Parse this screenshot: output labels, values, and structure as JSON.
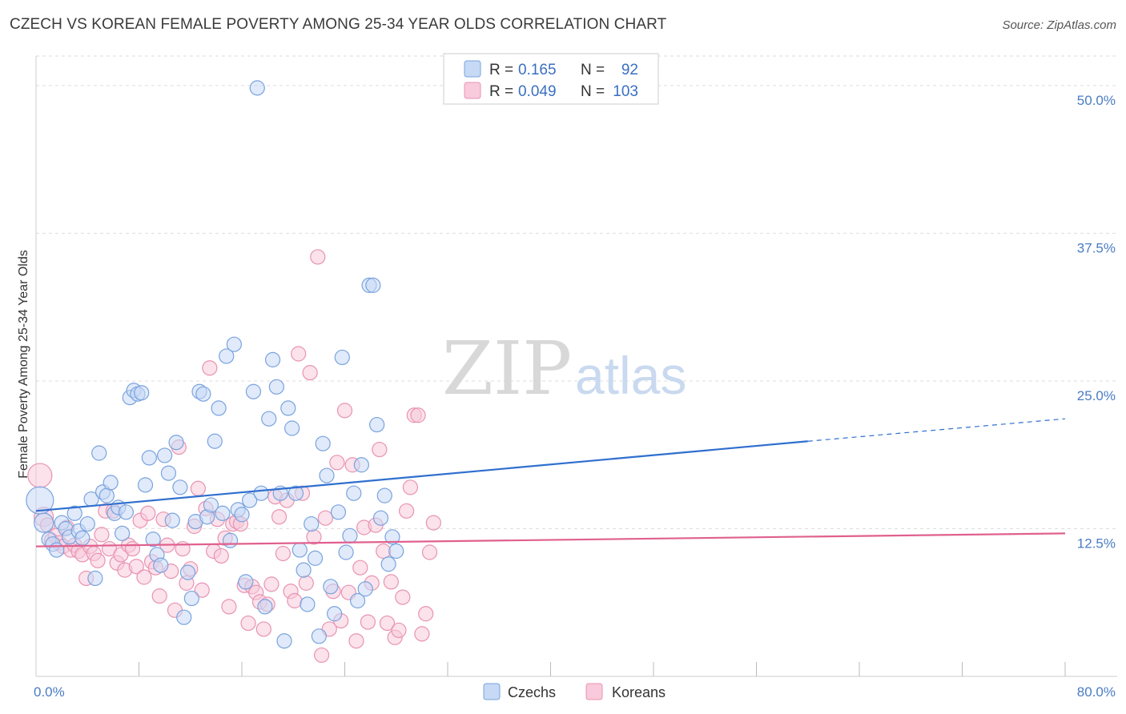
{
  "title": "CZECH VS KOREAN FEMALE POVERTY AMONG 25-34 YEAR OLDS CORRELATION CHART",
  "source": "Source: ZipAtlas.com",
  "watermark": {
    "zip": "ZIP",
    "atlas": "atlas"
  },
  "legend": {
    "r_label": "R =",
    "n_label": "N =",
    "czechs": {
      "r": "0.165",
      "n": "92"
    },
    "koreans": {
      "r": "0.049",
      "n": "103"
    }
  },
  "bottom_legend": {
    "czechs": "Czechs",
    "koreans": "Koreans"
  },
  "colors": {
    "czech_fill": "#c6d9f5",
    "czech_stroke": "#7aa3dd",
    "czech_line": "#2f6fcf",
    "korean_fill": "#f8cadb",
    "korean_stroke": "#e893b2",
    "korean_line": "#e0608e",
    "tick": "#4a7cc4",
    "grid": "#dddddd"
  },
  "chart_data": {
    "type": "scatter",
    "title": "CZECH VS KOREAN FEMALE POVERTY AMONG 25-34 YEAR OLDS CORRELATION CHART",
    "xlabel": "",
    "ylabel": "Female Poverty Among 25-34 Year Olds",
    "xlim": [
      0,
      80
    ],
    "ylim": [
      0,
      52.5
    ],
    "x_tick_labels": [
      "0.0%",
      "80.0%"
    ],
    "y_ticks": [
      12.5,
      25.0,
      37.5,
      50.0
    ],
    "y_tick_labels": [
      "12.5%",
      "25.0%",
      "37.5%",
      "50.0%"
    ],
    "grid": "horizontal dashed",
    "legend_placement": "top-center",
    "series": [
      {
        "name": "Czechs",
        "r": 0.165,
        "n": 92,
        "trend": {
          "x0": 0,
          "y0": 14.0,
          "x1": 60,
          "y1": 19.9,
          "dashed_to_x": 80,
          "dashed_to_y": 21.8
        },
        "points": [
          [
            0.3,
            14.9
          ],
          [
            0.6,
            13.0
          ],
          [
            1.0,
            11.6
          ],
          [
            1.3,
            11.2
          ],
          [
            1.6,
            10.7
          ],
          [
            2.0,
            13.0
          ],
          [
            2.3,
            12.5
          ],
          [
            2.6,
            11.8
          ],
          [
            3.0,
            13.8
          ],
          [
            3.3,
            12.3
          ],
          [
            3.6,
            11.7
          ],
          [
            4.0,
            12.9
          ],
          [
            4.3,
            15.0
          ],
          [
            4.6,
            8.3
          ],
          [
            4.9,
            18.9
          ],
          [
            5.2,
            15.6
          ],
          [
            5.5,
            15.3
          ],
          [
            5.8,
            16.4
          ],
          [
            6.1,
            13.8
          ],
          [
            6.4,
            14.3
          ],
          [
            6.7,
            12.1
          ],
          [
            7.0,
            13.9
          ],
          [
            7.3,
            23.6
          ],
          [
            7.6,
            24.2
          ],
          [
            7.9,
            23.9
          ],
          [
            8.2,
            24.0
          ],
          [
            8.5,
            16.2
          ],
          [
            8.8,
            18.5
          ],
          [
            9.1,
            11.6
          ],
          [
            9.4,
            10.3
          ],
          [
            9.7,
            9.4
          ],
          [
            10.0,
            18.7
          ],
          [
            10.3,
            17.2
          ],
          [
            10.6,
            13.2
          ],
          [
            10.9,
            19.8
          ],
          [
            11.2,
            16.0
          ],
          [
            11.5,
            5.0
          ],
          [
            11.8,
            8.8
          ],
          [
            12.1,
            6.6
          ],
          [
            12.4,
            13.1
          ],
          [
            12.7,
            24.1
          ],
          [
            13.0,
            23.9
          ],
          [
            13.3,
            13.5
          ],
          [
            13.6,
            14.5
          ],
          [
            13.9,
            19.9
          ],
          [
            14.2,
            22.7
          ],
          [
            14.5,
            13.8
          ],
          [
            14.8,
            27.1
          ],
          [
            15.1,
            11.5
          ],
          [
            15.4,
            28.1
          ],
          [
            15.7,
            14.1
          ],
          [
            16.0,
            13.7
          ],
          [
            16.3,
            8.0
          ],
          [
            16.6,
            14.9
          ],
          [
            16.9,
            24.1
          ],
          [
            17.2,
            49.8
          ],
          [
            17.5,
            15.5
          ],
          [
            17.8,
            5.9
          ],
          [
            18.1,
            21.8
          ],
          [
            18.4,
            26.8
          ],
          [
            18.7,
            24.5
          ],
          [
            19.0,
            15.5
          ],
          [
            19.3,
            3.0
          ],
          [
            19.6,
            22.7
          ],
          [
            19.9,
            21.0
          ],
          [
            20.2,
            15.5
          ],
          [
            20.5,
            10.7
          ],
          [
            20.8,
            9.0
          ],
          [
            21.1,
            6.1
          ],
          [
            21.4,
            12.9
          ],
          [
            21.7,
            10.0
          ],
          [
            22.0,
            3.4
          ],
          [
            22.3,
            19.7
          ],
          [
            22.6,
            17.0
          ],
          [
            22.9,
            7.6
          ],
          [
            23.2,
            5.3
          ],
          [
            23.5,
            13.9
          ],
          [
            23.8,
            27.0
          ],
          [
            24.1,
            10.5
          ],
          [
            24.4,
            11.9
          ],
          [
            24.7,
            15.5
          ],
          [
            25.0,
            6.4
          ],
          [
            25.3,
            17.9
          ],
          [
            25.6,
            7.4
          ],
          [
            25.9,
            33.1
          ],
          [
            26.2,
            33.1
          ],
          [
            26.5,
            21.3
          ],
          [
            26.8,
            13.4
          ],
          [
            27.1,
            15.3
          ],
          [
            27.4,
            9.5
          ],
          [
            27.7,
            11.8
          ],
          [
            28.0,
            10.6
          ]
        ]
      },
      {
        "name": "Koreans",
        "r": 0.049,
        "n": 103,
        "trend": {
          "x0": 0,
          "y0": 11.0,
          "x1": 80,
          "y1": 12.1
        },
        "points": [
          [
            0.3,
            17.0
          ],
          [
            0.6,
            13.5
          ],
          [
            0.9,
            12.8
          ],
          [
            1.2,
            11.5
          ],
          [
            1.5,
            11.9
          ],
          [
            1.8,
            11.3
          ],
          [
            2.1,
            11.0
          ],
          [
            2.4,
            12.6
          ],
          [
            2.7,
            10.7
          ],
          [
            3.0,
            11.1
          ],
          [
            3.3,
            10.6
          ],
          [
            3.6,
            10.3
          ],
          [
            3.9,
            8.3
          ],
          [
            4.2,
            11.0
          ],
          [
            4.5,
            10.4
          ],
          [
            4.8,
            9.8
          ],
          [
            5.1,
            12.0
          ],
          [
            5.4,
            14.0
          ],
          [
            5.7,
            10.8
          ],
          [
            6.0,
            14.0
          ],
          [
            6.3,
            9.6
          ],
          [
            6.6,
            10.3
          ],
          [
            6.9,
            9.0
          ],
          [
            7.2,
            11.1
          ],
          [
            7.5,
            10.8
          ],
          [
            7.8,
            9.3
          ],
          [
            8.1,
            13.2
          ],
          [
            8.4,
            8.4
          ],
          [
            8.7,
            13.8
          ],
          [
            9.0,
            9.7
          ],
          [
            9.3,
            9.2
          ],
          [
            9.6,
            6.8
          ],
          [
            9.9,
            13.3
          ],
          [
            10.2,
            11.1
          ],
          [
            10.5,
            8.9
          ],
          [
            10.8,
            5.6
          ],
          [
            11.1,
            19.4
          ],
          [
            11.4,
            10.8
          ],
          [
            11.7,
            7.9
          ],
          [
            12.0,
            9.1
          ],
          [
            12.3,
            12.7
          ],
          [
            12.6,
            15.9
          ],
          [
            12.9,
            7.3
          ],
          [
            13.2,
            14.2
          ],
          [
            13.5,
            26.1
          ],
          [
            13.8,
            10.6
          ],
          [
            14.1,
            13.3
          ],
          [
            14.4,
            10.2
          ],
          [
            14.7,
            11.7
          ],
          [
            15.0,
            5.9
          ],
          [
            15.3,
            12.9
          ],
          [
            15.6,
            13.1
          ],
          [
            15.9,
            12.9
          ],
          [
            16.2,
            7.7
          ],
          [
            16.5,
            4.5
          ],
          [
            16.8,
            7.6
          ],
          [
            17.1,
            7.1
          ],
          [
            17.4,
            6.3
          ],
          [
            17.7,
            4.0
          ],
          [
            18.0,
            6.1
          ],
          [
            18.3,
            7.8
          ],
          [
            18.6,
            15.2
          ],
          [
            18.9,
            13.5
          ],
          [
            19.2,
            10.4
          ],
          [
            19.5,
            14.9
          ],
          [
            19.8,
            7.2
          ],
          [
            20.1,
            6.4
          ],
          [
            20.4,
            27.3
          ],
          [
            20.7,
            15.5
          ],
          [
            21.0,
            7.9
          ],
          [
            21.3,
            25.7
          ],
          [
            21.6,
            11.8
          ],
          [
            21.9,
            35.5
          ],
          [
            22.2,
            1.8
          ],
          [
            22.5,
            13.4
          ],
          [
            22.8,
            4.0
          ],
          [
            23.1,
            7.2
          ],
          [
            23.4,
            18.1
          ],
          [
            23.7,
            4.7
          ],
          [
            24.0,
            22.5
          ],
          [
            24.3,
            7.1
          ],
          [
            24.6,
            17.9
          ],
          [
            24.9,
            3.0
          ],
          [
            25.2,
            9.2
          ],
          [
            25.5,
            12.6
          ],
          [
            25.8,
            4.6
          ],
          [
            26.1,
            7.9
          ],
          [
            26.4,
            12.8
          ],
          [
            26.7,
            19.2
          ],
          [
            27.0,
            10.6
          ],
          [
            27.3,
            4.5
          ],
          [
            27.6,
            8.0
          ],
          [
            27.9,
            3.3
          ],
          [
            28.2,
            3.9
          ],
          [
            28.5,
            6.7
          ],
          [
            28.8,
            14.0
          ],
          [
            29.1,
            16.0
          ],
          [
            29.4,
            22.1
          ],
          [
            29.7,
            22.1
          ],
          [
            30.0,
            3.6
          ],
          [
            30.3,
            5.3
          ],
          [
            30.6,
            10.5
          ],
          [
            30.9,
            13.0
          ]
        ]
      }
    ]
  }
}
